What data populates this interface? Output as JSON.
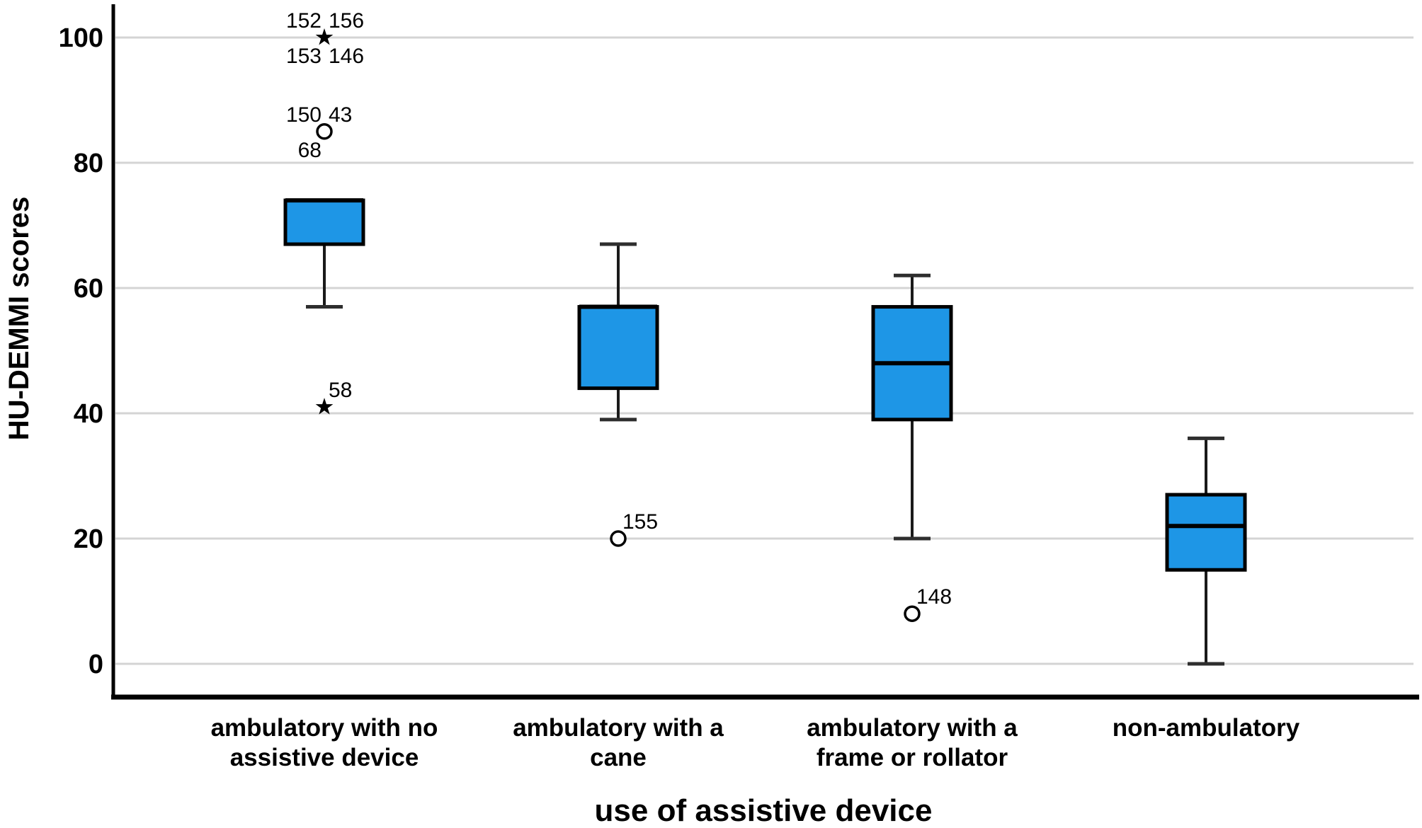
{
  "chart_data": {
    "type": "boxplot",
    "title": "",
    "xlabel": "use of assistive device",
    "ylabel": "HU-DEMMI scores",
    "ylim": [
      0,
      100
    ],
    "yticks": [
      0,
      20,
      40,
      60,
      80,
      100
    ],
    "grid": "horizontal",
    "legend": "none",
    "colors": {
      "box_fill": "#1E96E6",
      "box_stroke": "#000000",
      "median_stroke": "#000000",
      "whisker_stroke": "#1a1a1a",
      "cap_stroke": "#2e2e2e",
      "gridline": "#d4d4d4",
      "axis": "#000000",
      "background": "#ffffff"
    },
    "groups": [
      {
        "category_lines": [
          "ambulatory with no",
          "assistive device"
        ],
        "whisker_low": 57,
        "q1": 67,
        "median": 74,
        "q3": 74,
        "whisker_high": 74,
        "outliers": [
          {
            "value": 100,
            "marker": "star",
            "labels": [
              {
                "text": "152",
                "pos": "above-left"
              },
              {
                "text": "156",
                "pos": "above-right"
              },
              {
                "text": "153",
                "pos": "below-left"
              },
              {
                "text": "146",
                "pos": "below-right"
              }
            ]
          },
          {
            "value": 85,
            "marker": "circle",
            "labels": [
              {
                "text": "150",
                "pos": "above-left"
              },
              {
                "text": "43",
                "pos": "above-right"
              },
              {
                "text": "68",
                "pos": "below-left"
              }
            ]
          },
          {
            "value": 41,
            "marker": "star",
            "labels": [
              {
                "text": "58",
                "pos": "above-right"
              }
            ]
          }
        ]
      },
      {
        "category_lines": [
          "ambulatory with a",
          "cane"
        ],
        "whisker_low": 39,
        "q1": 44,
        "median": 57,
        "q3": 57,
        "whisker_high": 67,
        "outliers": [
          {
            "value": 20,
            "marker": "circle",
            "labels": [
              {
                "text": "155",
                "pos": "above-right"
              }
            ]
          }
        ]
      },
      {
        "category_lines": [
          "ambulatory with a",
          "frame or rollator"
        ],
        "whisker_low": 20,
        "q1": 39,
        "median": 48,
        "q3": 57,
        "whisker_high": 62,
        "outliers": [
          {
            "value": 8,
            "marker": "circle",
            "labels": [
              {
                "text": "148",
                "pos": "above-right"
              }
            ]
          }
        ]
      },
      {
        "category_lines": [
          "non-ambulatory"
        ],
        "whisker_low": 0,
        "q1": 15,
        "median": 22,
        "q3": 27,
        "whisker_high": 36,
        "outliers": []
      }
    ]
  }
}
